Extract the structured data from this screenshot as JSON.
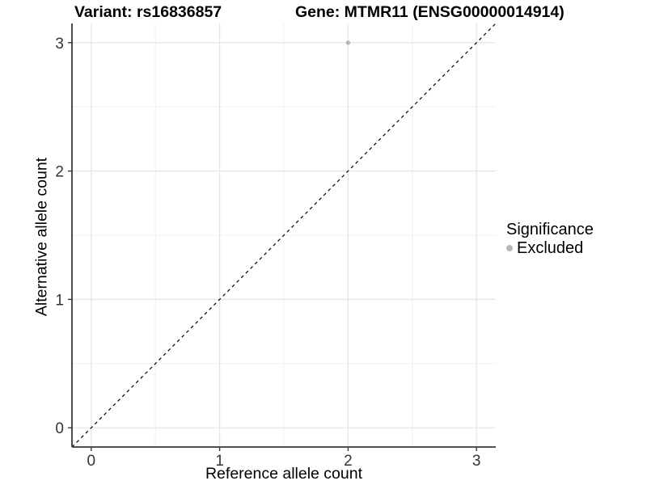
{
  "chart_data": {
    "type": "scatter",
    "title_variant": "Variant: rs16836857",
    "title_gene": "Gene: MTMR11 (ENSG00000014914)",
    "xlabel": "Reference allele count",
    "ylabel": "Alternative allele count",
    "xlim": [
      -0.15,
      3.15
    ],
    "ylim": [
      -0.15,
      3.15
    ],
    "xticks": [
      0,
      1,
      2,
      3
    ],
    "yticks": [
      0,
      1,
      2,
      3
    ],
    "xminor": [
      0.5,
      1.5,
      2.5
    ],
    "yminor": [
      0.5,
      1.5,
      2.5
    ],
    "grid": "major and minor gridlines on white background",
    "legend_position": "right",
    "legend": {
      "title": "Significance",
      "items": [
        {
          "label": "Excluded",
          "color": "#b8b8b8"
        }
      ]
    },
    "reference_line": {
      "kind": "identity y=x",
      "style": "dashed",
      "color": "#000000"
    },
    "series": [
      {
        "name": "Excluded",
        "color": "#b8b8b8",
        "points": [
          {
            "x": 2,
            "y": 3
          }
        ]
      }
    ],
    "colors": {
      "background": "#ffffff",
      "grid_major": "#e4e4e4",
      "grid_minor": "#f0f0f0",
      "axis_line": "#3a3a3a",
      "tick_text": "#333333",
      "title_text": "#000000"
    }
  }
}
